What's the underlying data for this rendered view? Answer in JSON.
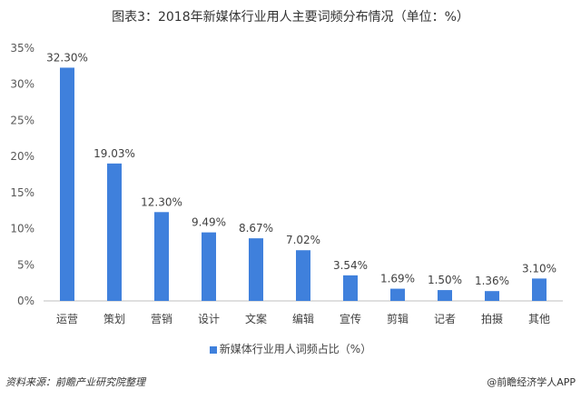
{
  "chart_data": {
    "type": "bar",
    "title": "图表3：2018年新媒体行业用人主要词频分布情况（单位：%）",
    "categories": [
      "运营",
      "策划",
      "营销",
      "设计",
      "文案",
      "编辑",
      "宣传",
      "剪辑",
      "记者",
      "拍摄",
      "其他"
    ],
    "values": [
      32.3,
      19.03,
      12.3,
      9.49,
      8.67,
      7.02,
      3.54,
      1.69,
      1.5,
      1.36,
      3.1
    ],
    "data_labels": [
      "32.30%",
      "19.03%",
      "12.30%",
      "9.49%",
      "8.67%",
      "7.02%",
      "3.54%",
      "1.69%",
      "1.50%",
      "1.36%",
      "3.10%"
    ],
    "yticks": [
      "0%",
      "5%",
      "10%",
      "15%",
      "20%",
      "25%",
      "30%",
      "35%"
    ],
    "ylim": [
      0,
      35
    ],
    "xlabel": "",
    "ylabel": "",
    "legend": {
      "label": "新媒体行业用人词频占比（%）",
      "position": "bottom"
    },
    "bar_color": "#3f80dc",
    "grid": false
  },
  "footer": {
    "source": "资料来源：前瞻产业研究院整理",
    "brand": "@前瞻经济学人APP"
  }
}
